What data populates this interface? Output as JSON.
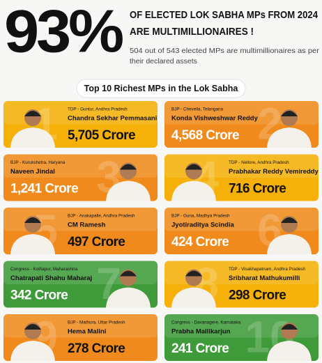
{
  "header": {
    "big_stat": "93%",
    "headline_1": "OF ELECTED LOK SABHA MPs FROM 2024",
    "headline_2": "ARE MULTIMILLIONAIRES !",
    "subtitle_1": "504 out of 543 elected MPs are multimillionaires as per",
    "subtitle_2": "their declared assets"
  },
  "section_title": "Top 10 Richest MPs in the Lok Sabha",
  "cards": [
    {
      "rank": "1",
      "tag": "TDP - Guntur, Andhra Pradesh",
      "name": "Chandra Sekhar Pemmasani",
      "wealth": "5,705 Crore",
      "color": "#f5b10a"
    },
    {
      "rank": "2",
      "tag": "BJP - Chevella, Telangana",
      "name": "Konda Vishweshwar Reddy",
      "wealth": "4,568 Crore",
      "color": "#f08a1c"
    },
    {
      "rank": "3",
      "tag": "BJP - Kurukshetra, Haryana",
      "name": "Naveen Jindal",
      "wealth": "1,241 Crore",
      "color": "#f08a1c"
    },
    {
      "rank": "4",
      "tag": "TDP - Nellore, Andhra Pradesh",
      "name": "Prabhakar Reddy Vemireddy",
      "wealth": "716 Crore",
      "color": "#f5b10a"
    },
    {
      "rank": "5",
      "tag": "BJP - Anakapalle, Andhra Pradesh",
      "name": "CM Ramesh",
      "wealth": "497 Crore",
      "color": "#f08a1c"
    },
    {
      "rank": "6",
      "tag": "BJP - Guna, Madhya Pradesh",
      "name": "Jyotiraditya Scindia",
      "wealth": "424 Crore",
      "color": "#f08a1c"
    },
    {
      "rank": "7",
      "tag": "Congress - Kolhapur, Maharashtra",
      "name": "Chatrapati Shahu Maharaj",
      "wealth": "342 Crore",
      "color": "#3f9b3a"
    },
    {
      "rank": "8",
      "tag": "TDP - Visakhapatnam, Andhra Pradesh",
      "name": "Sribharat Mathukumilli",
      "wealth": "298 Crore",
      "color": "#f5b10a"
    },
    {
      "rank": "9",
      "tag": "BJP - Mathura, Uttar Pradesh",
      "name": "Hema Malini",
      "wealth": "278 Crore",
      "color": "#f08a1c"
    },
    {
      "rank": "10",
      "tag": "Congress - Davanagere, Karnataka",
      "name": "Prabha Mallikarjun",
      "wealth": "241 Crore",
      "color": "#3f9b3a"
    }
  ]
}
